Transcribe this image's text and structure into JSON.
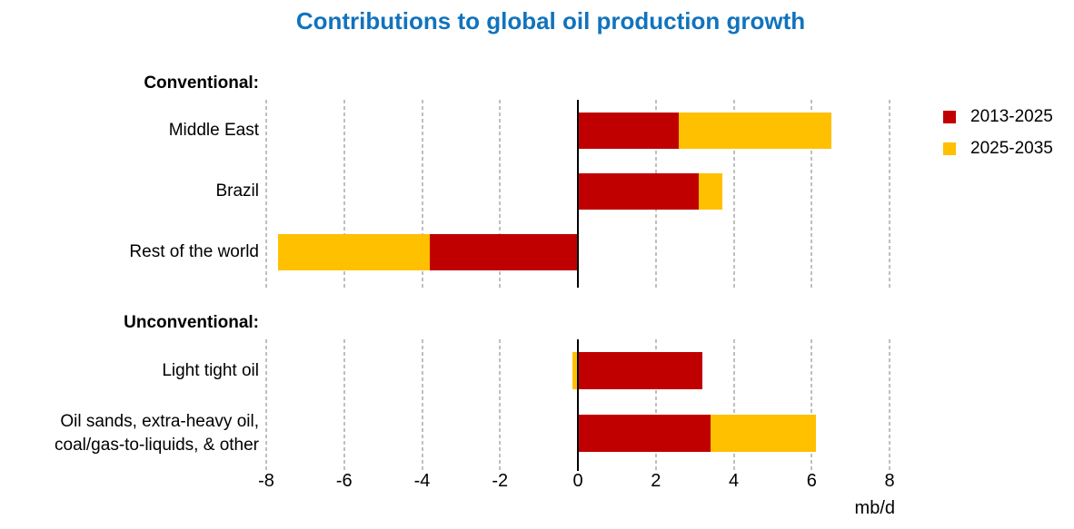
{
  "title": "Contributions to global oil production growth",
  "legend": {
    "items": [
      {
        "label": "2013-2025",
        "color": "#C00000"
      },
      {
        "label": "2025-2035",
        "color": "#FFC000"
      }
    ]
  },
  "colors": {
    "title": "#1173BD",
    "series": [
      "#C00000",
      "#FFC000"
    ],
    "grid": "#BFBFBF",
    "axis": "#000000",
    "text": "#000000"
  },
  "chart_data": {
    "type": "bar",
    "orientation": "horizontal",
    "stacked": true,
    "title": "Contributions to global oil production growth",
    "xlabel": "mb/d",
    "xlim": [
      -8,
      8
    ],
    "xticks": [
      -8,
      -6,
      -4,
      -2,
      0,
      2,
      4,
      6,
      8
    ],
    "grid": true,
    "legend_position": "upper right",
    "series": [
      "2013-2025",
      "2025-2035"
    ],
    "groups": [
      {
        "header": "Conventional:",
        "bars": [
          {
            "category": "Middle East",
            "values": [
              2.6,
              3.9
            ]
          },
          {
            "category": "Brazil",
            "values": [
              3.1,
              0.6
            ]
          },
          {
            "category": "Rest of the world",
            "values": [
              -3.8,
              -3.9
            ]
          }
        ]
      },
      {
        "header": "Unconventional:",
        "bars": [
          {
            "category": "Light tight oil",
            "values": [
              3.2,
              -0.15
            ]
          },
          {
            "category": "Oil sands, extra-heavy oil,\ncoal/gas-to-liquids, & other",
            "values": [
              3.4,
              2.7
            ]
          }
        ]
      }
    ]
  }
}
